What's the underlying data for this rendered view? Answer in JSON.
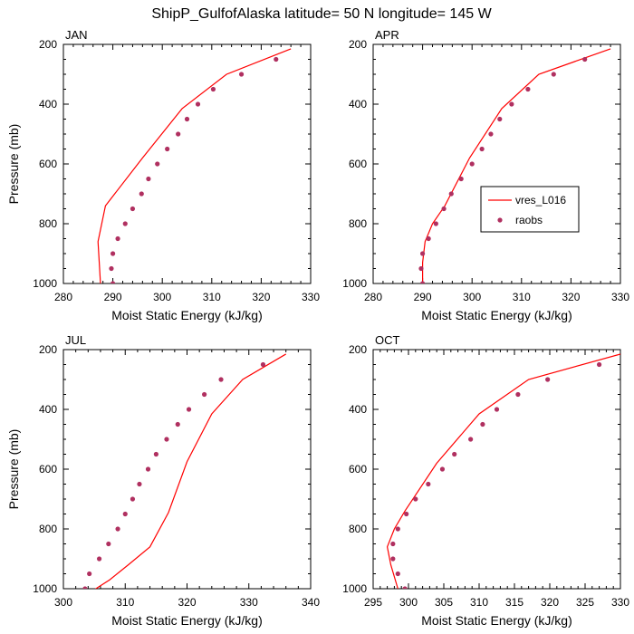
{
  "figure_title": "ShipP_GulfofAlaska  latitude= 50 N longitude= 145 W",
  "legend": {
    "model_label": "vres_L016",
    "obs_label": "raobs",
    "model_color": "#ff0000",
    "obs_color": "#b03060",
    "location": "right side of APR panel"
  },
  "chart_data": [
    {
      "type": "line",
      "panel": "JAN",
      "title": "JAN",
      "xlabel": "Moist Static Energy (kJ/kg)",
      "ylabel": "Pressure (mb)",
      "xlim": [
        280,
        330
      ],
      "ylim": [
        1000,
        200
      ],
      "xticks": [
        280,
        290,
        300,
        310,
        320,
        330
      ],
      "yticks": [
        200,
        400,
        600,
        800,
        1000
      ],
      "series": [
        {
          "name": "vres_L016",
          "style": "line",
          "x": [
            287.5,
            287.0,
            288.5,
            296.0,
            304.0,
            313.0,
            326.0
          ],
          "y": [
            1000,
            860,
            740,
            580,
            415,
            300,
            215
          ]
        },
        {
          "name": "raobs",
          "style": "markers",
          "x": [
            290.0,
            289.7,
            290.0,
            291.0,
            292.5,
            294.0,
            295.8,
            297.2,
            299.0,
            301.0,
            303.2,
            305.0,
            307.2,
            310.3,
            316.0,
            323.0
          ],
          "y": [
            1000,
            950,
            900,
            850,
            800,
            750,
            700,
            650,
            600,
            550,
            500,
            450,
            400,
            350,
            300,
            250
          ]
        }
      ]
    },
    {
      "type": "line",
      "panel": "APR",
      "title": "APR",
      "xlabel": "Moist Static Energy (kJ/kg)",
      "ylabel": "",
      "xlim": [
        280,
        330
      ],
      "ylim": [
        1000,
        200
      ],
      "xticks": [
        280,
        290,
        300,
        310,
        320,
        330
      ],
      "yticks": [
        200,
        400,
        600,
        800,
        1000
      ],
      "series": [
        {
          "name": "vres_L016",
          "style": "line",
          "x": [
            290.0,
            290.0,
            290.5,
            292.0,
            294.5,
            299.5,
            306.0,
            313.5,
            328.0
          ],
          "y": [
            1000,
            930,
            860,
            800,
            740,
            580,
            415,
            300,
            215
          ]
        },
        {
          "name": "raobs",
          "style": "markers",
          "x": [
            290.0,
            289.7,
            290.0,
            291.2,
            292.7,
            294.3,
            295.8,
            297.8,
            300.0,
            302.0,
            303.8,
            305.6,
            308.0,
            311.3,
            316.5,
            322.8
          ],
          "y": [
            1000,
            950,
            900,
            850,
            800,
            750,
            700,
            650,
            600,
            550,
            500,
            450,
            400,
            350,
            300,
            250
          ]
        }
      ]
    },
    {
      "type": "line",
      "panel": "JUL",
      "title": "JUL",
      "xlabel": "Moist Static Energy (kJ/kg)",
      "ylabel": "Pressure (mb)",
      "xlim": [
        300,
        340
      ],
      "ylim": [
        1000,
        200
      ],
      "xticks": [
        300,
        310,
        320,
        330,
        340
      ],
      "yticks": [
        200,
        400,
        600,
        800,
        1000
      ],
      "series": [
        {
          "name": "vres_L016",
          "style": "line",
          "x": [
            304.5,
            307.5,
            310.5,
            314.0,
            317.0,
            320.0,
            324.0,
            329.0,
            336.0
          ],
          "y": [
            1010,
            970,
            920,
            860,
            745,
            575,
            415,
            300,
            215
          ]
        },
        {
          "name": "raobs",
          "style": "markers",
          "x": [
            303.5,
            304.2,
            305.8,
            307.3,
            308.8,
            310.0,
            311.2,
            312.3,
            313.7,
            315.0,
            316.7,
            318.5,
            320.3,
            322.8,
            325.5,
            332.3
          ],
          "y": [
            1000,
            950,
            900,
            850,
            800,
            750,
            700,
            650,
            600,
            550,
            500,
            450,
            400,
            350,
            300,
            250
          ]
        }
      ]
    },
    {
      "type": "line",
      "panel": "OCT",
      "title": "OCT",
      "xlabel": "Moist Static Energy (kJ/kg)",
      "ylabel": "",
      "xlim": [
        295,
        330
      ],
      "ylim": [
        1000,
        200
      ],
      "xticks": [
        295,
        300,
        305,
        310,
        315,
        320,
        325,
        330
      ],
      "yticks": [
        200,
        400,
        600,
        800,
        1000
      ],
      "series": [
        {
          "name": "vres_L016",
          "style": "line",
          "x": [
            298.5,
            297.5,
            297.0,
            298.0,
            299.5,
            304.0,
            310.0,
            317.0,
            330.0
          ],
          "y": [
            1000,
            920,
            860,
            800,
            740,
            580,
            415,
            300,
            215
          ]
        },
        {
          "name": "raobs",
          "style": "markers",
          "x": [
            299.5,
            298.5,
            297.8,
            297.8,
            298.5,
            299.7,
            301.0,
            302.8,
            304.8,
            306.5,
            308.8,
            310.5,
            312.5,
            315.5,
            319.7,
            327.0
          ],
          "y": [
            1000,
            950,
            900,
            850,
            800,
            750,
            700,
            650,
            600,
            550,
            500,
            450,
            400,
            350,
            300,
            250
          ]
        }
      ]
    }
  ]
}
